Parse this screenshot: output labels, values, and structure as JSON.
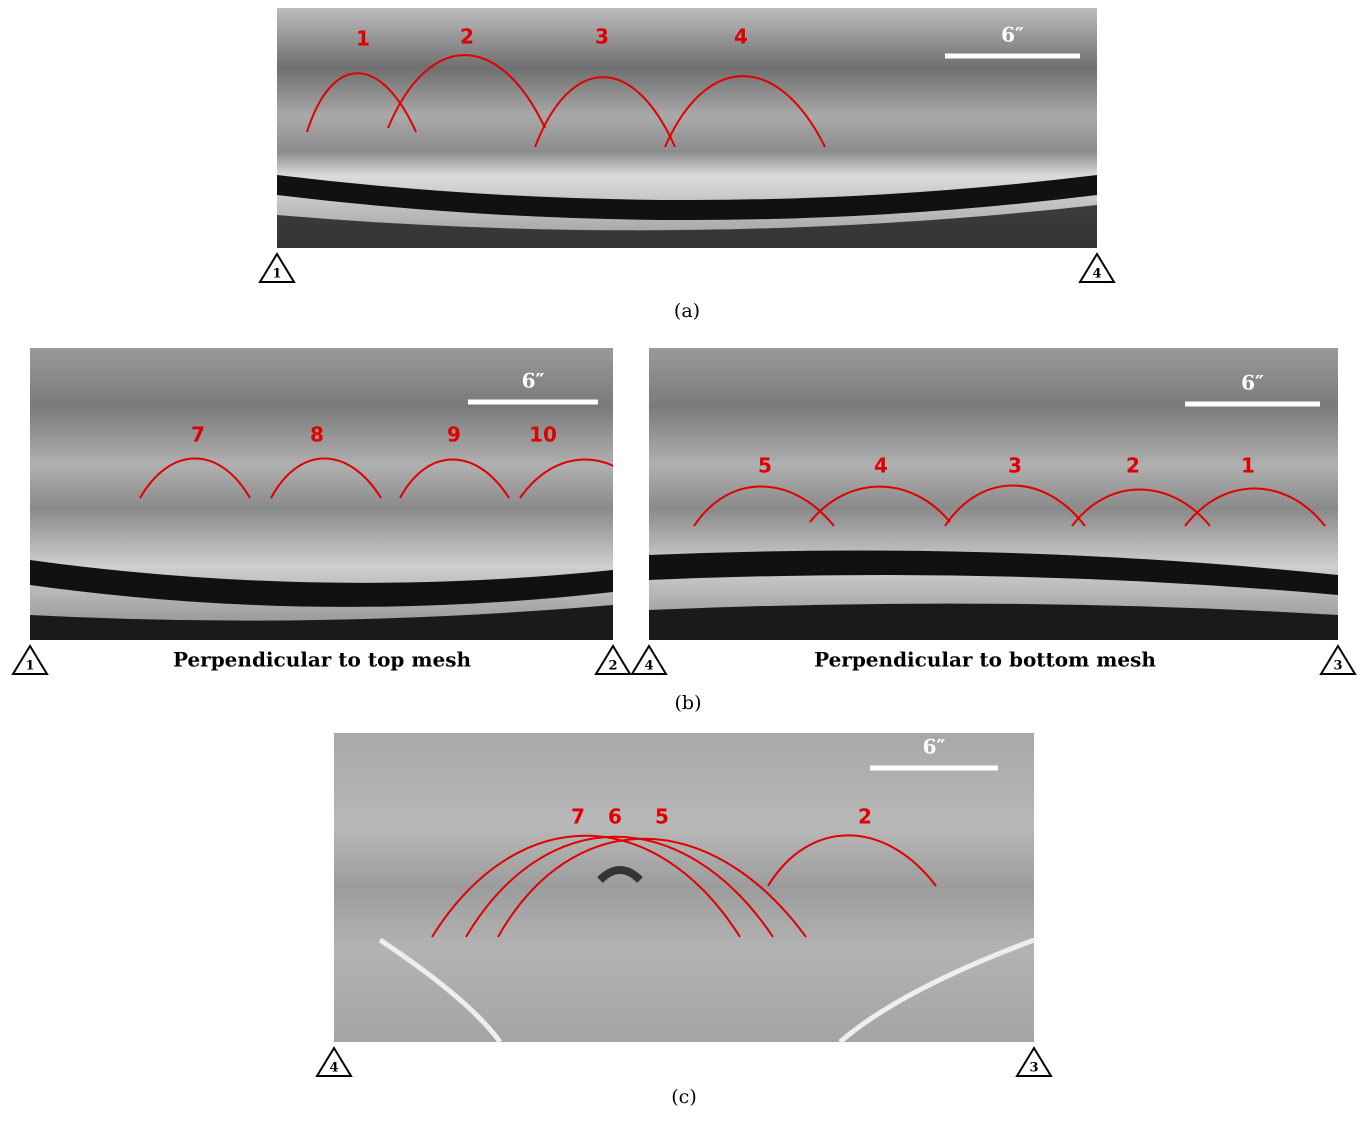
{
  "panels": [
    {
      "caption": "(a)",
      "images": [
        {
          "scale": "6″",
          "corners": [
            "1",
            "4"
          ],
          "hyperbolas": [
            "1",
            "2",
            "3",
            "4"
          ]
        }
      ]
    },
    {
      "caption": "(b)",
      "images": [
        {
          "scale": "6″",
          "corners": [
            "1",
            "2"
          ],
          "hyperbolas": [
            "7",
            "8",
            "9",
            "10"
          ],
          "subtitle": "Perpendicular to top mesh"
        },
        {
          "scale": "6″",
          "corners": [
            "4",
            "3"
          ],
          "hyperbolas": [
            "5",
            "4",
            "3",
            "2",
            "1"
          ],
          "subtitle": "Perpendicular to bottom mesh"
        }
      ]
    },
    {
      "caption": "(c)",
      "images": [
        {
          "scale": "6″",
          "corners": [
            "4",
            "3"
          ],
          "hyperbolas": [
            "7",
            "6",
            "5",
            "2"
          ]
        }
      ]
    }
  ]
}
